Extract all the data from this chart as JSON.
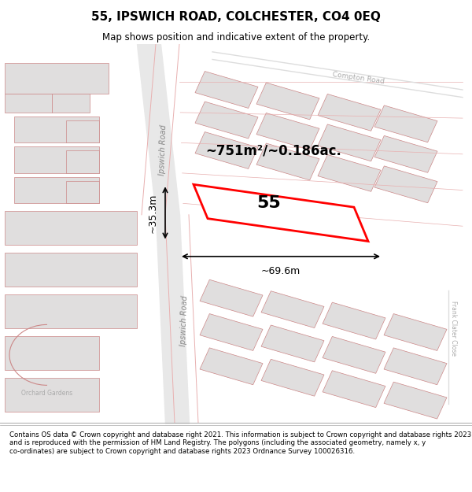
{
  "title": "55, IPSWICH ROAD, COLCHESTER, CO4 0EQ",
  "subtitle": "Map shows position and indicative extent of the property.",
  "footer": "Contains OS data © Crown copyright and database right 2021. This information is subject to Crown copyright and database rights 2023 and is reproduced with the permission of HM Land Registry. The polygons (including the associated geometry, namely x, y co-ordinates) are subject to Crown copyright and database rights 2023 Ordnance Survey 100026316.",
  "bg_color": "#f5f5f5",
  "map_bg": "#f0eeee",
  "road_color_light": "#e8b0b0",
  "road_color_red": "#cc0000",
  "building_fill": "#e0dede",
  "building_outline": "#cc8888",
  "highlight_fill": "#ffffff",
  "highlight_outline": "#cc0000",
  "area_text": "~751m²/~0.186ac.",
  "number_text": "55",
  "dim_width": "~69.6m",
  "dim_height": "~35.3m",
  "road_label1": "Ipswich Road",
  "road_label2": "Ipswich Road",
  "road_label3": "Compton Road",
  "street_label1": "Frank Clater Close",
  "street_label2": "Orchard Gardens",
  "figsize": [
    6.0,
    6.25
  ],
  "dpi": 100
}
